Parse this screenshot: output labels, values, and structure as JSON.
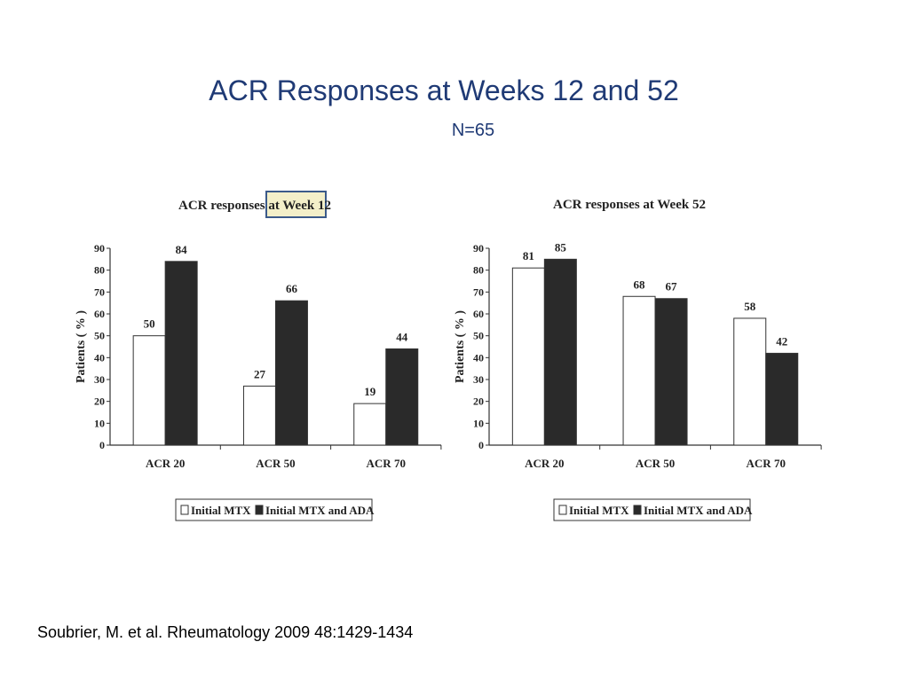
{
  "slide": {
    "title": "ACR Responses at Weeks 12 and 52",
    "subtitle": "N=65",
    "citation": "Soubrier, M. et al. Rheumatology 2009 48:1429-1434"
  },
  "colors": {
    "title": "#1f3a75",
    "initial_mtx": "#ffffff",
    "initial_mtx_ada": "#2a2a2a",
    "highlight_box": "#3b5a8a",
    "highlight_fill": "#f3efc9"
  },
  "chart_data": [
    {
      "type": "bar",
      "title_parts": [
        "ACR responses ",
        "at Week 12"
      ],
      "title": "ACR responses at Week 12",
      "ylabel": "Patients ( % )",
      "ylim": [
        0,
        90
      ],
      "yticks": [
        0,
        10,
        20,
        30,
        40,
        50,
        60,
        70,
        80,
        90
      ],
      "categories": [
        "ACR 20",
        "ACR 50",
        "ACR 70"
      ],
      "series": [
        {
          "name": "Initial MTX",
          "values": [
            50,
            27,
            19
          ]
        },
        {
          "name": "Initial MTX and ADA",
          "values": [
            84,
            66,
            44
          ]
        }
      ],
      "legend": "bottom",
      "grid": false
    },
    {
      "type": "bar",
      "title": "ACR responses at Week 52",
      "ylabel": "Patients ( % )",
      "ylim": [
        0,
        90
      ],
      "yticks": [
        0,
        10,
        20,
        30,
        40,
        50,
        60,
        70,
        80,
        90
      ],
      "categories": [
        "ACR 20",
        "ACR 50",
        "ACR 70"
      ],
      "series": [
        {
          "name": "Initial MTX",
          "values": [
            81,
            68,
            58
          ]
        },
        {
          "name": "Initial MTX and ADA",
          "values": [
            85,
            67,
            42
          ]
        }
      ],
      "legend": "bottom",
      "grid": false
    }
  ]
}
